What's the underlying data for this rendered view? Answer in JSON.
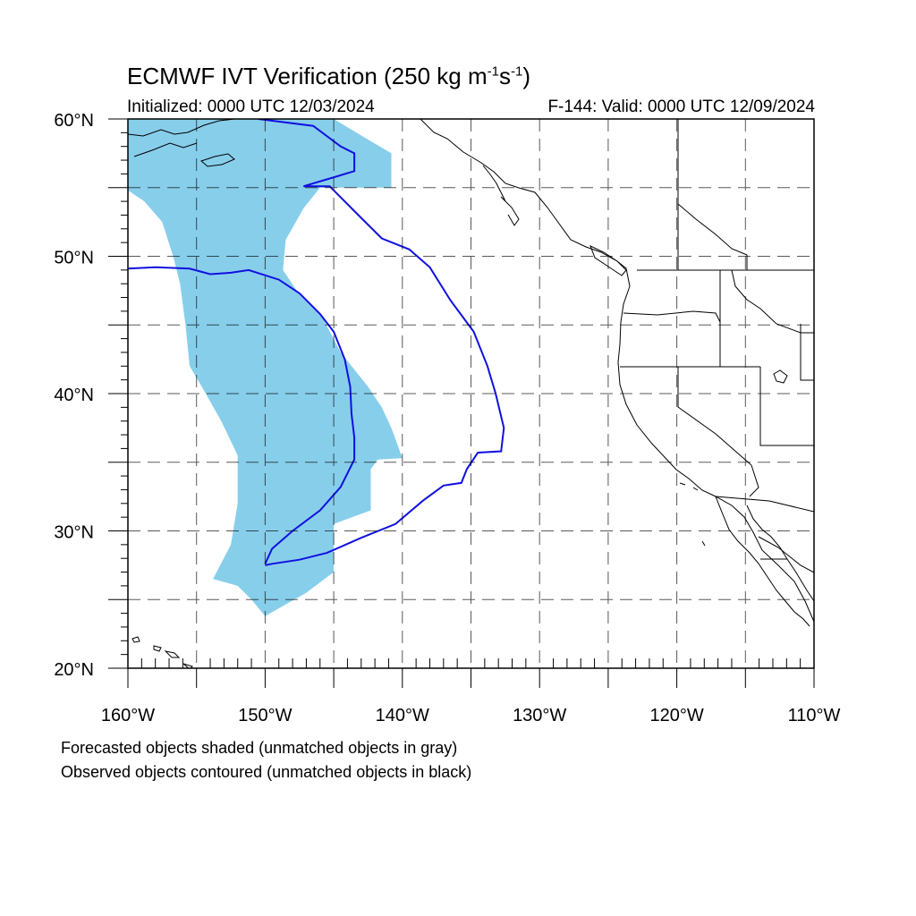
{
  "header": {
    "title_main": "ECMWF IVT Verification (250 kg m",
    "title_exp1": "-1",
    "title_mid": "s",
    "title_exp2": "-1",
    "title_end": ")",
    "initialized": "Initialized: 0000 UTC 12/03/2024",
    "valid": "F-144: Valid: 0000 UTC 12/09/2024"
  },
  "map": {
    "lon_range": [
      -160,
      -110
    ],
    "lat_range": [
      20,
      60
    ],
    "lat_labels": [
      {
        "value": 60,
        "text": "60°N"
      },
      {
        "value": 50,
        "text": "50°N"
      },
      {
        "value": 40,
        "text": "40°N"
      },
      {
        "value": 30,
        "text": "30°N"
      },
      {
        "value": 20,
        "text": "20°N"
      }
    ],
    "lon_labels": [
      {
        "value": -160,
        "text": "160°W"
      },
      {
        "value": -150,
        "text": "150°W"
      },
      {
        "value": -140,
        "text": "140°W"
      },
      {
        "value": -130,
        "text": "130°W"
      },
      {
        "value": -120,
        "text": "120°W"
      },
      {
        "value": -110,
        "text": "110°W"
      }
    ],
    "forecast_color": "#87ceeb",
    "observed_color": "#1010e0",
    "forecast_object_lonlat": [
      [
        -160,
        60
      ],
      [
        -145,
        60
      ],
      [
        -142.5,
        58.5
      ],
      [
        -140.8,
        57.5
      ],
      [
        -140.8,
        55
      ],
      [
        -146,
        55
      ],
      [
        -147.2,
        53.5
      ],
      [
        -148.5,
        51.2
      ],
      [
        -148.7,
        49
      ],
      [
        -147.5,
        47.2
      ],
      [
        -145.8,
        45.5
      ],
      [
        -144.5,
        43
      ],
      [
        -142.5,
        40.5
      ],
      [
        -141.5,
        39
      ],
      [
        -140.8,
        37.5
      ],
      [
        -140,
        35.3
      ],
      [
        -141.8,
        35.2
      ],
      [
        -142.3,
        34.5
      ],
      [
        -142.3,
        31.5
      ],
      [
        -145,
        30.5
      ],
      [
        -145,
        27
      ],
      [
        -147,
        25.5
      ],
      [
        -150,
        23.8
      ],
      [
        -151,
        25
      ],
      [
        -152,
        26
      ],
      [
        -153.8,
        26.5
      ],
      [
        -152.5,
        29
      ],
      [
        -152,
        32
      ],
      [
        -152,
        35.5
      ],
      [
        -153.2,
        38
      ],
      [
        -154.5,
        40.3
      ],
      [
        -155.5,
        42
      ],
      [
        -155.8,
        45
      ],
      [
        -156.2,
        48
      ],
      [
        -156.7,
        50
      ],
      [
        -157.5,
        52.5
      ],
      [
        -158.8,
        54
      ],
      [
        -160,
        54.8
      ]
    ],
    "observed_east_lonlat": [
      [
        -150.5,
        60
      ],
      [
        -146.5,
        59.5
      ],
      [
        -144.5,
        58
      ],
      [
        -143.5,
        57.5
      ],
      [
        -143.5,
        56.2
      ],
      [
        -145.5,
        55.6
      ],
      [
        -147.2,
        55.1
      ],
      [
        -145.3,
        55.1
      ],
      [
        -143.2,
        53
      ],
      [
        -141.5,
        51.3
      ],
      [
        -139.5,
        50.5
      ],
      [
        -138,
        49.2
      ],
      [
        -136.5,
        46.8
      ],
      [
        -134.8,
        44.5
      ],
      [
        -133.8,
        42
      ],
      [
        -133.2,
        40
      ],
      [
        -132.6,
        37.5
      ],
      [
        -132.8,
        35.8
      ],
      [
        -134.5,
        35.7
      ],
      [
        -135.3,
        34.5
      ],
      [
        -135.7,
        33.5
      ],
      [
        -137,
        33.3
      ],
      [
        -138.5,
        32.2
      ],
      [
        -140.5,
        30.5
      ],
      [
        -143,
        29.5
      ],
      [
        -145.5,
        28.4
      ],
      [
        -147.5,
        27.9
      ],
      [
        -149.5,
        27.6
      ],
      [
        -150,
        27.5
      ]
    ],
    "observed_west_lonlat": [
      [
        -160,
        49.1
      ],
      [
        -158,
        49.2
      ],
      [
        -155.5,
        49.1
      ],
      [
        -154,
        48.7
      ],
      [
        -152.5,
        48.8
      ],
      [
        -151.2,
        49
      ],
      [
        -149,
        48.3
      ],
      [
        -147.5,
        47.3
      ],
      [
        -146,
        45.8
      ],
      [
        -145,
        44.5
      ],
      [
        -144.2,
        42.5
      ],
      [
        -143.8,
        40.5
      ],
      [
        -143.7,
        38.5
      ],
      [
        -143.5,
        36.8
      ],
      [
        -143.5,
        35.2
      ],
      [
        -144.5,
        33.2
      ],
      [
        -146,
        31.5
      ],
      [
        -148,
        30
      ],
      [
        -149.5,
        28.7
      ],
      [
        -150,
        27.6
      ]
    ]
  },
  "captions": {
    "line1": "Forecasted objects shaded (unmatched objects in gray)",
    "line2": "Observed objects contoured (unmatched objects in black)"
  }
}
